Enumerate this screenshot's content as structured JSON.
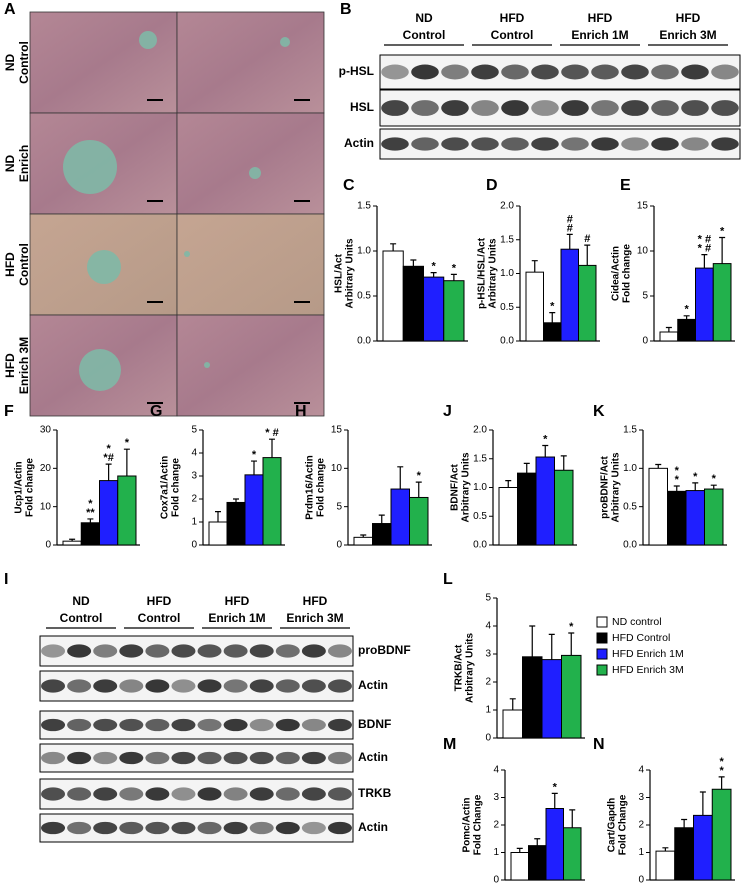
{
  "panel_a": {
    "label": "A",
    "rows": [
      [
        "ND",
        "Control"
      ],
      [
        "ND",
        "Enrich"
      ],
      [
        "HFD",
        "Control"
      ],
      [
        "HFD",
        "Enrich 3M"
      ]
    ]
  },
  "panel_b": {
    "label": "B",
    "groups": [
      [
        "ND",
        "Control"
      ],
      [
        "HFD",
        "Control"
      ],
      [
        "HFD",
        "Enrich 1M"
      ],
      [
        "HFD",
        "Enrich 3M"
      ]
    ],
    "blots": [
      "p-HSL",
      "HSL",
      "Actin"
    ]
  },
  "panel_i": {
    "label": "I",
    "groups": [
      [
        "ND",
        "Control"
      ],
      [
        "HFD",
        "Control"
      ],
      [
        "HFD",
        "Enrich 1M"
      ],
      [
        "HFD",
        "Enrich 3M"
      ]
    ],
    "blots": [
      "proBDNF",
      "Actin",
      "BDNF",
      "Actin",
      "TRKB",
      "Actin"
    ]
  },
  "legend": {
    "items": [
      {
        "name": "ND control",
        "color": "#ffffff"
      },
      {
        "name": "HFD Control",
        "color": "#000000"
      },
      {
        "name": "HFD Enrich 1M",
        "color": "#1f1fff"
      },
      {
        "name": "HFD Enrich 3M",
        "color": "#22b14c"
      }
    ]
  },
  "chart_data": [
    {
      "type": "bar",
      "label": "C",
      "ylabel": [
        "HSL/Act",
        "Arbitrary Units"
      ],
      "values": [
        1.0,
        0.83,
        0.71,
        0.67
      ],
      "errors": [
        0.08,
        0.07,
        0.05,
        0.07
      ],
      "annotations": [
        null,
        null,
        [
          "*"
        ],
        [
          "*"
        ]
      ],
      "ylim": [
        0,
        1.5
      ],
      "yticks": [
        {
          "value": 0,
          "label": "0.0"
        },
        0.5,
        {
          "value": 1,
          "label": "1.0"
        },
        1.5
      ]
    },
    {
      "type": "bar",
      "label": "D",
      "ylabel": [
        "p-HSL/HSL/Act",
        "Arbitrary Units"
      ],
      "values": [
        1.02,
        0.27,
        1.36,
        1.12
      ],
      "errors": [
        0.17,
        0.15,
        0.22,
        0.3
      ],
      "annotations": [
        null,
        [
          "*"
        ],
        [
          "#",
          "#"
        ],
        [
          "#"
        ]
      ],
      "ylim": [
        0,
        2
      ],
      "yticks": [
        {
          "value": 0,
          "label": "0.0"
        },
        0.5,
        {
          "value": 1,
          "label": "1.0"
        },
        1.5,
        {
          "value": 2,
          "label": "2.0"
        }
      ]
    },
    {
      "type": "bar",
      "label": "E",
      "ylabel": [
        "Cidea/Actin",
        "Fold change"
      ],
      "values": [
        1.0,
        2.4,
        8.1,
        8.6
      ],
      "errors": [
        0.5,
        0.4,
        1.5,
        2.9
      ],
      "annotations": [
        null,
        [
          "*"
        ],
        [
          "* #",
          "* #"
        ],
        [
          "*"
        ]
      ],
      "ylim": [
        0,
        15
      ],
      "yticks": [
        0,
        5,
        10,
        15
      ]
    },
    {
      "type": "bar",
      "label": "F",
      "ylabel": [
        "Ucp1/Actin",
        "Fold change"
      ],
      "values": [
        1,
        5.8,
        16.8,
        18
      ],
      "errors": [
        0.5,
        1,
        4.3,
        7
      ],
      "annotations": [
        null,
        [
          "*",
          "**"
        ],
        [
          "*",
          "*#"
        ],
        [
          "*"
        ]
      ],
      "ylim": [
        0,
        30
      ],
      "yticks": [
        0,
        10,
        20,
        30
      ]
    },
    {
      "type": "bar",
      "label": "G",
      "ylabel": [
        "Cox7a1/Actin",
        "Fold change"
      ],
      "values": [
        1,
        1.85,
        3.05,
        3.8
      ],
      "errors": [
        0.45,
        0.15,
        0.6,
        0.8
      ],
      "annotations": [
        null,
        null,
        [
          "*"
        ],
        [
          "* #"
        ]
      ],
      "ylim": [
        0,
        5
      ],
      "yticks": [
        0,
        1,
        2,
        3,
        4,
        5
      ]
    },
    {
      "type": "bar",
      "label": "H",
      "ylabel": [
        "Prdm16/Actin",
        "Fold change"
      ],
      "values": [
        1,
        2.8,
        7.3,
        6.2
      ],
      "errors": [
        0.3,
        1.1,
        2.9,
        2.0
      ],
      "annotations": [
        null,
        null,
        null,
        [
          "*"
        ]
      ],
      "ylim": [
        0,
        15
      ],
      "yticks": [
        0,
        5,
        10,
        15
      ]
    },
    {
      "type": "bar",
      "label": "J",
      "ylabel": [
        "BDNF/Act",
        "Arbitrary Units"
      ],
      "values": [
        1.0,
        1.25,
        1.53,
        1.3
      ],
      "errors": [
        0.12,
        0.17,
        0.2,
        0.25
      ],
      "annotations": [
        null,
        null,
        [
          "*"
        ],
        null
      ],
      "ylim": [
        0,
        2
      ],
      "yticks": [
        {
          "value": 0,
          "label": "0.0"
        },
        0.5,
        {
          "value": 1,
          "label": "1.0"
        },
        1.5,
        {
          "value": 2,
          "label": "2.0"
        }
      ]
    },
    {
      "type": "bar",
      "label": "K",
      "ylabel": [
        "proBDNF/Act",
        "Arbitrary Units"
      ],
      "values": [
        1.0,
        0.7,
        0.71,
        0.73
      ],
      "errors": [
        0.05,
        0.07,
        0.1,
        0.05
      ],
      "annotations": [
        null,
        [
          "*",
          "*"
        ],
        [
          "*"
        ],
        [
          "*"
        ]
      ],
      "ylim": [
        0,
        1.5
      ],
      "yticks": [
        {
          "value": 0,
          "label": "0.0"
        },
        0.5,
        {
          "value": 1,
          "label": "1.0"
        },
        1.5
      ]
    },
    {
      "type": "bar",
      "label": "L",
      "ylabel": [
        "TRKB/Act",
        "Arbitrary Units"
      ],
      "values": [
        1,
        2.9,
        2.8,
        2.95
      ],
      "errors": [
        0.4,
        1.1,
        0.9,
        0.8
      ],
      "annotations": [
        null,
        null,
        null,
        [
          "*"
        ]
      ],
      "ylim": [
        0,
        5
      ],
      "yticks": [
        0,
        1,
        2,
        3,
        4,
        5
      ]
    },
    {
      "type": "bar",
      "label": "M",
      "ylabel": [
        "Pomc/Actin",
        "Fold Change"
      ],
      "values": [
        1.0,
        1.25,
        2.6,
        1.9
      ],
      "errors": [
        0.15,
        0.25,
        0.55,
        0.65
      ],
      "annotations": [
        null,
        null,
        [
          "*"
        ],
        null
      ],
      "ylim": [
        0,
        4
      ],
      "yticks": [
        0,
        1,
        2,
        3,
        4
      ]
    },
    {
      "type": "bar",
      "label": "N",
      "ylabel": [
        "Cart/Gapdh",
        "Fold Change"
      ],
      "values": [
        1.05,
        1.9,
        2.35,
        3.3
      ],
      "errors": [
        0.12,
        0.3,
        0.85,
        0.45
      ],
      "annotations": [
        null,
        null,
        null,
        [
          "*",
          "*"
        ]
      ],
      "ylim": [
        0,
        4
      ],
      "yticks": [
        0,
        1,
        2,
        3,
        4
      ]
    }
  ]
}
